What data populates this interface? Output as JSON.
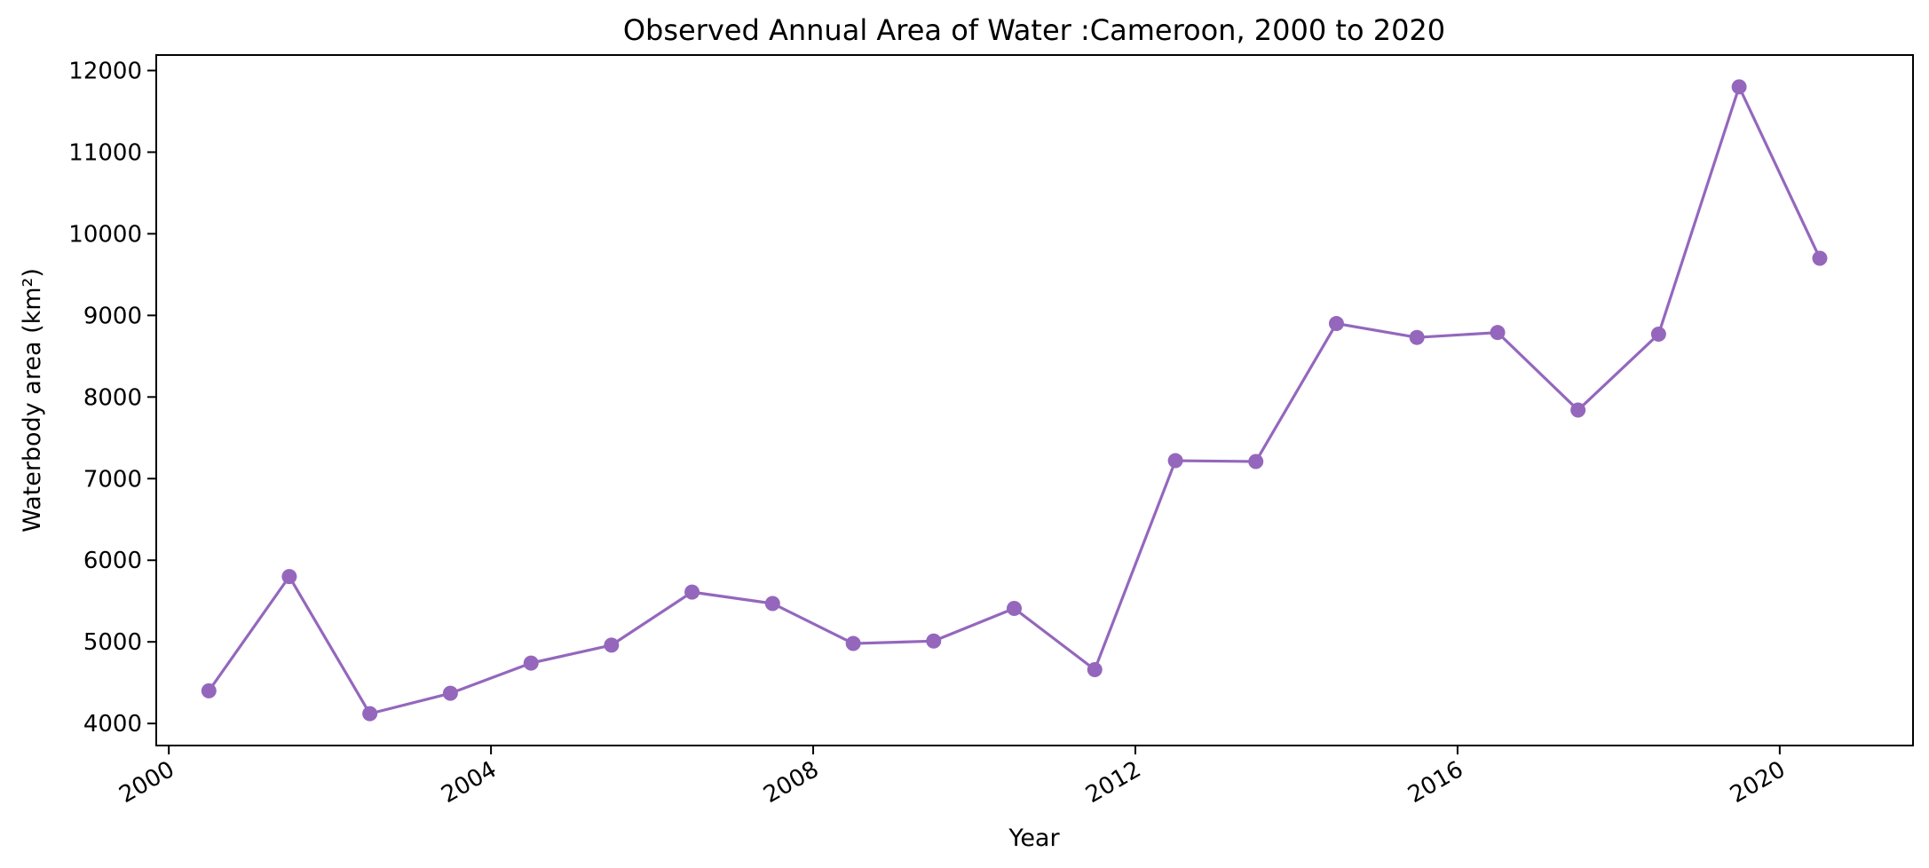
{
  "chart_data": {
    "type": "line",
    "title": "Observed Annual Area of Water :Cameroon, 2000 to 2020",
    "xlabel": "Year",
    "ylabel": "Waterbody area (km²)",
    "x": [
      "2000-07-01",
      "2001-07-01",
      "2002-07-01",
      "2003-07-01",
      "2004-07-01",
      "2005-07-01",
      "2006-07-01",
      "2007-07-01",
      "2008-07-01",
      "2009-07-01",
      "2010-07-01",
      "2011-07-01",
      "2012-07-01",
      "2013-07-01",
      "2014-07-01",
      "2015-07-01",
      "2016-07-01",
      "2017-07-01",
      "2018-07-01",
      "2019-07-01",
      "2020-07-01"
    ],
    "series": [
      {
        "values": [
          4400,
          5800,
          4120,
          4370,
          4740,
          4960,
          5610,
          5470,
          4980,
          5010,
          5410,
          4660,
          7220,
          7210,
          8900,
          8730,
          8790,
          7840,
          8770,
          11800,
          9700
        ],
        "color": "#9467bd",
        "marker": "circle"
      }
    ],
    "xticks": [
      "2000",
      "2004",
      "2008",
      "2012",
      "2016",
      "2020"
    ],
    "yticks": [
      "4000",
      "5000",
      "6000",
      "7000",
      "8000",
      "9000",
      "10000",
      "11000",
      "12000"
    ],
    "ylim": [
      3730,
      12190
    ],
    "xlim": [
      "1999-11-05",
      "2021-08-28"
    ],
    "grid": false
  }
}
